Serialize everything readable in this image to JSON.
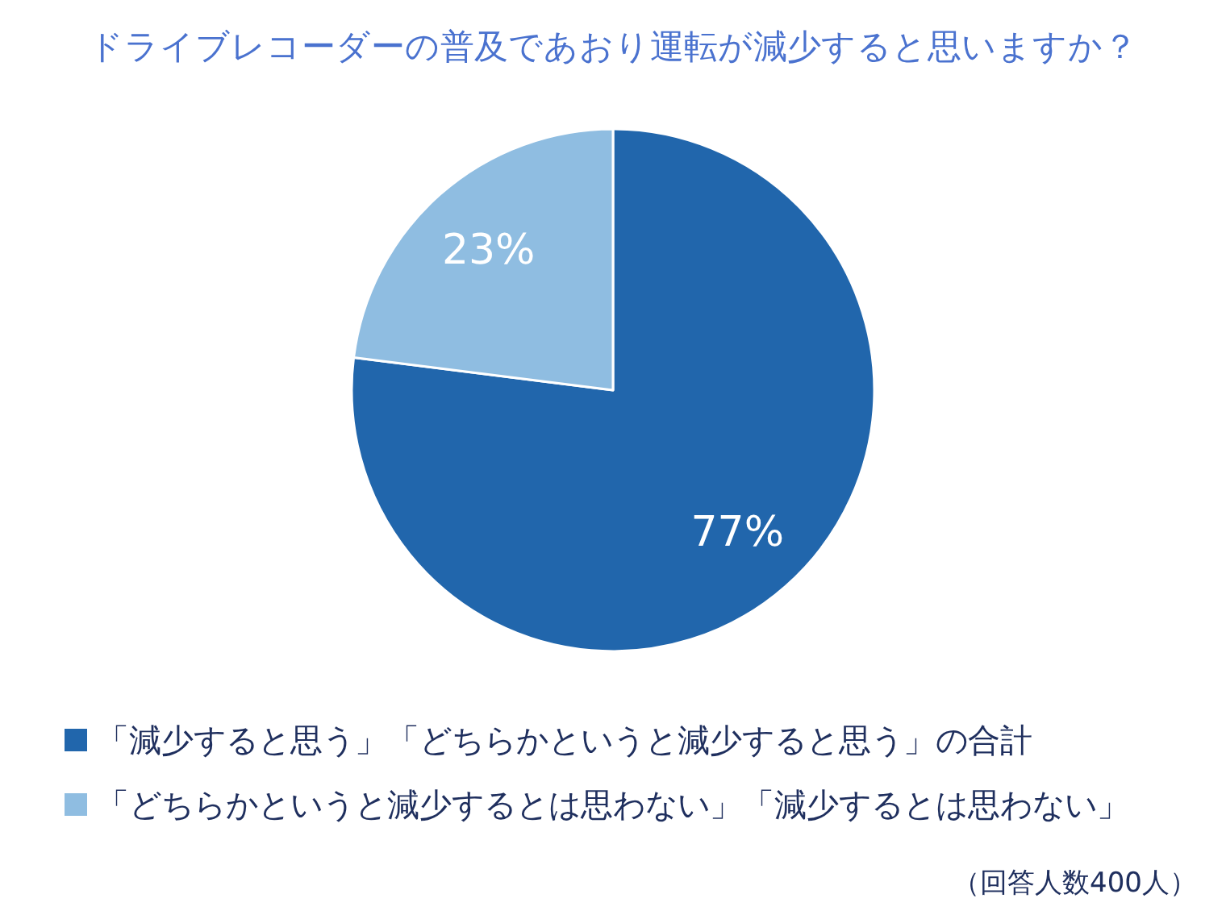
{
  "chart_data": {
    "type": "pie",
    "title": "ドライブレコーダーの普及であおり運転が減少すると思いますか？",
    "categories": [
      "「減少すると思う」「どちらかというと減少すると思う」の合計",
      "「どちらかというと減少するとは思わない」「減少するとは思わない」"
    ],
    "values": [
      77,
      23
    ],
    "colors": [
      "#2166ac",
      "#8fbde1"
    ],
    "value_labels": [
      "77%",
      "23%"
    ],
    "legend": "bottom",
    "annotations": [
      "（回答人数400人）"
    ]
  }
}
